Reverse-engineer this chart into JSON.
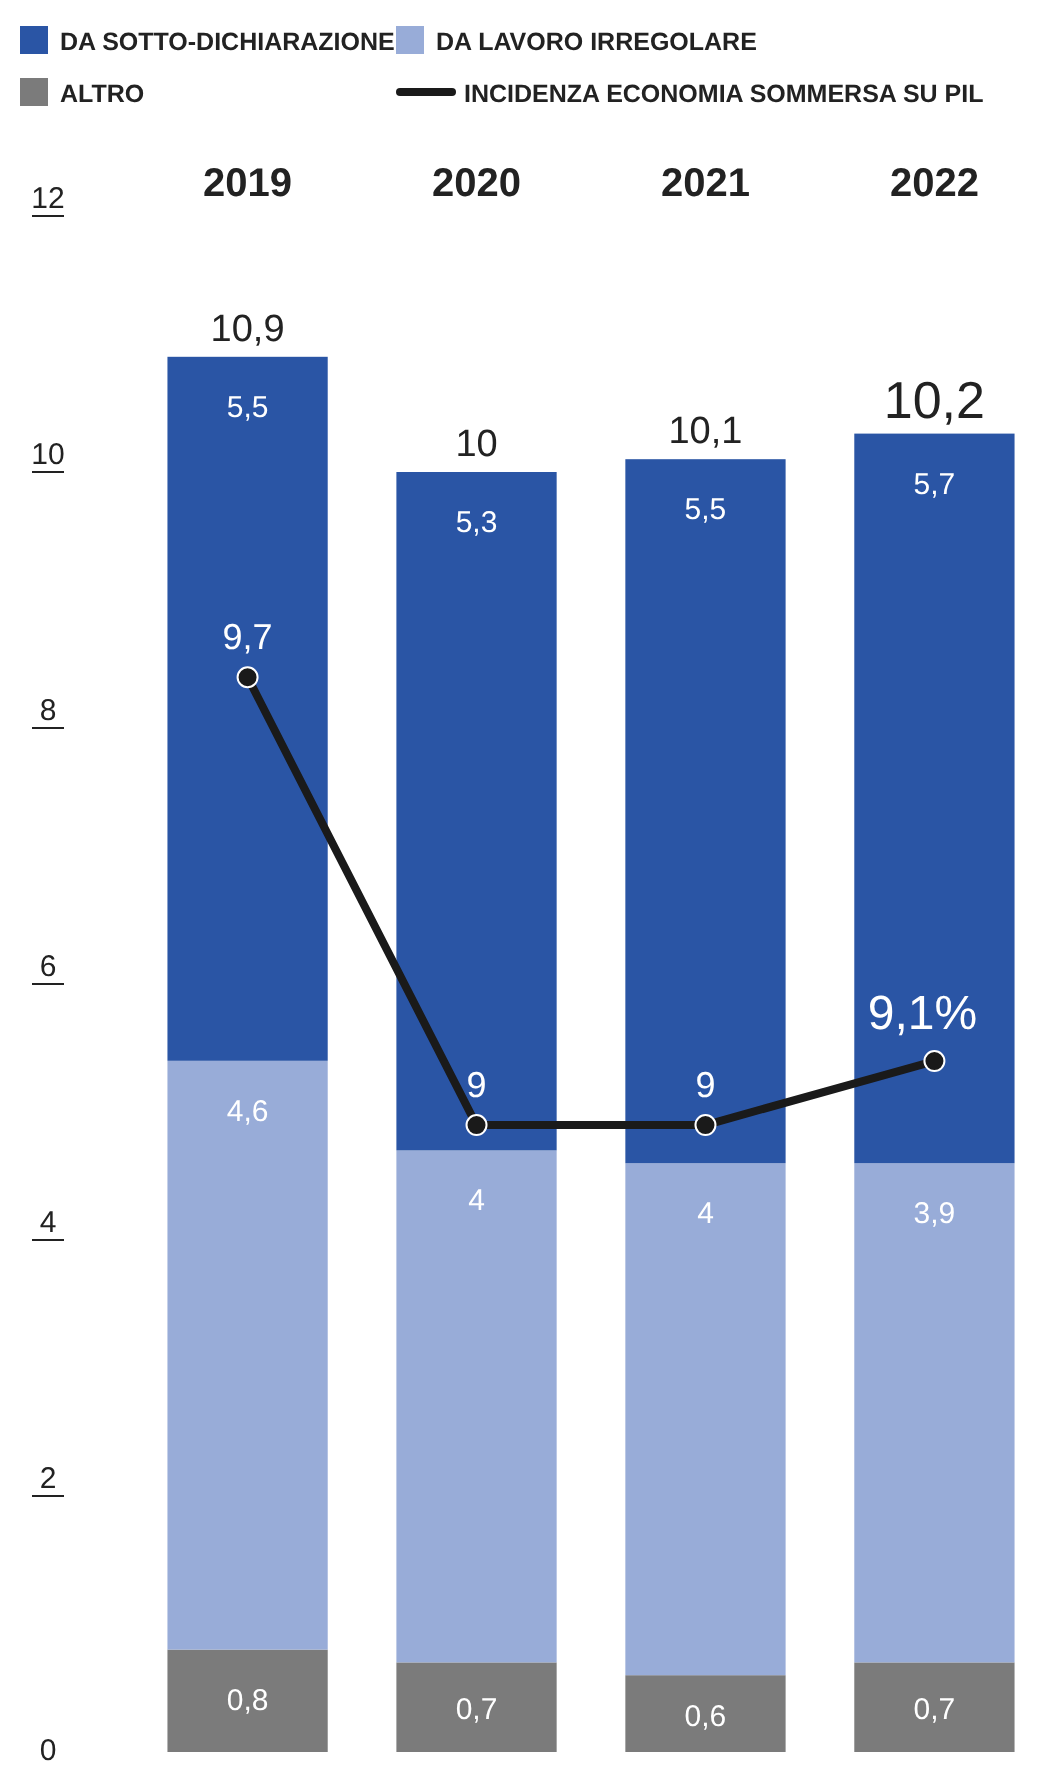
{
  "chart_data": {
    "type": "bar",
    "stacked": true,
    "categories": [
      "2019",
      "2020",
      "2021",
      "2022"
    ],
    "series": [
      {
        "name": "ALTRO",
        "color": "#7b7b7b",
        "values": [
          0.8,
          0.7,
          0.6,
          0.7
        ],
        "value_labels": [
          "0,8",
          "0,7",
          "0,6",
          "0,7"
        ]
      },
      {
        "name": "DA LAVORO IRREGOLARE",
        "color": "#98acd8",
        "values": [
          4.6,
          4,
          4,
          3.9
        ],
        "value_labels": [
          "4,6",
          "4",
          "4",
          "3,9"
        ]
      },
      {
        "name": "DA SOTTO-DICHIARAZIONE",
        "color": "#2a55a5",
        "values": [
          5.5,
          5.3,
          5.5,
          5.7
        ],
        "value_labels": [
          "5,5",
          "5,3",
          "5,5",
          "5,7"
        ]
      },
      {
        "name": "INCIDENZA ECONOMIA SOMMERSA SU PIL",
        "type": "line",
        "axis": "y2",
        "color": "#1a1a1a",
        "values": [
          9.7,
          9,
          9,
          9.1
        ],
        "value_labels": [
          "9,7",
          "9",
          "9",
          "9,1%"
        ]
      }
    ],
    "totals": [
      "10,9",
      "10",
      "10,1",
      "10,2"
    ],
    "ylim": [
      0,
      12
    ],
    "yticks": [
      0,
      2,
      4,
      6,
      8,
      10,
      12
    ],
    "tick_labels": "xy",
    "grid": false,
    "legend": "top",
    "marker": "circle",
    "line_style": "solid"
  }
}
